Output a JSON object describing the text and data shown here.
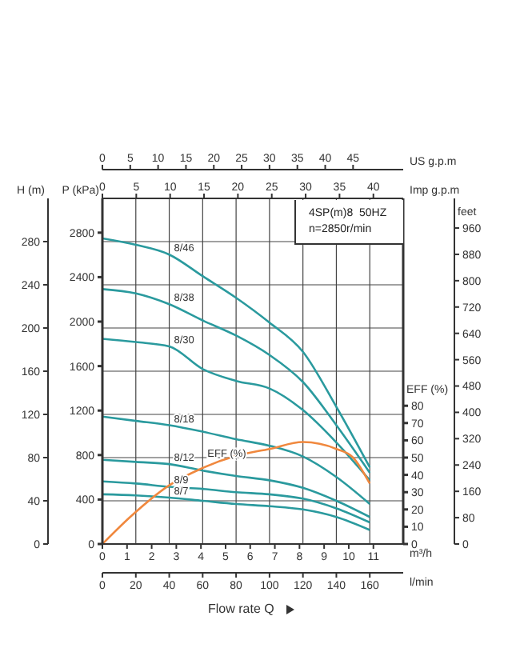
{
  "chart_data": {
    "type": "line",
    "xlabel": "l/min",
    "xlim": [
      0,
      180
    ],
    "xticks": [
      0,
      20,
      40,
      60,
      80,
      100,
      120,
      140,
      160
    ],
    "x2label": "US g.p.m",
    "x2lim": [
      0,
      54
    ],
    "x2ticks": [
      0,
      5,
      10,
      15,
      20,
      25,
      30,
      35,
      40,
      45
    ],
    "ylabel": "H (m)",
    "ylim": [
      0,
      320
    ],
    "yticks": [
      0,
      40,
      80,
      120,
      160,
      200,
      240,
      280
    ],
    "y2label": "EFF (%)",
    "y2lim": [
      0,
      200
    ],
    "y2ticks": [
      0,
      10,
      20,
      30,
      40,
      50,
      60,
      70,
      80
    ],
    "y3label": "feet",
    "y3lim": [
      0,
      1050
    ],
    "y3ticks": [
      0,
      80,
      160,
      240,
      320,
      400,
      480,
      560,
      640,
      720,
      800,
      880,
      960
    ],
    "grid": true,
    "marker": "none",
    "annotations": [
      "Flow rate Q",
      "4SP(m)8  50HZ",
      "n=2850r/min",
      "Imp g.p.m",
      "0",
      "5",
      "10",
      "15",
      "20",
      "25",
      "30",
      "35",
      "40",
      "m³/h",
      "0",
      "1",
      "2",
      "3",
      "4",
      "5",
      "6",
      "7",
      "8",
      "9",
      "10",
      "11",
      "P (kPa)",
      "0",
      "400",
      "800",
      "1200",
      "1600",
      "2000",
      "2400",
      "2800"
    ],
    "series": [
      {
        "name": "8/46",
        "color": "#2a9a9e",
        "x": [
          0,
          20,
          40,
          60,
          80,
          100,
          120,
          140,
          160
        ],
        "values": [
          283,
          277,
          268,
          248,
          228,
          205,
          178,
          127,
          71
        ]
      },
      {
        "name": "8/38",
        "color": "#2a9a9e",
        "x": [
          0,
          20,
          40,
          60,
          80,
          100,
          120,
          140,
          160
        ],
        "values": [
          236,
          232,
          222,
          207,
          193,
          175,
          150,
          110,
          66
        ]
      },
      {
        "name": "8/30",
        "color": "#2a9a9e",
        "x": [
          0,
          20,
          40,
          60,
          80,
          100,
          120,
          140,
          160
        ],
        "values": [
          190,
          187,
          183,
          162,
          151,
          144,
          124,
          94,
          59
        ]
      },
      {
        "name": "8/18",
        "color": "#2a9a9e",
        "x": [
          0,
          20,
          40,
          60,
          80,
          100,
          120,
          140,
          160
        ],
        "values": [
          118,
          114,
          110,
          104,
          97,
          91,
          81,
          62,
          37
        ]
      },
      {
        "name": "8/12",
        "color": "#2a9a9e",
        "x": [
          0,
          20,
          40,
          60,
          80,
          100,
          120,
          140,
          160
        ],
        "values": [
          78,
          76,
          74,
          68,
          63,
          59,
          52,
          40,
          25
        ]
      },
      {
        "name": "8/9",
        "color": "#2a9a9e",
        "x": [
          0,
          20,
          40,
          60,
          80,
          100,
          120,
          140,
          160
        ],
        "values": [
          58,
          56,
          53,
          51,
          48,
          46,
          42,
          33,
          20
        ]
      },
      {
        "name": "8/7",
        "color": "#2a9a9e",
        "x": [
          0,
          20,
          40,
          60,
          80,
          100,
          120,
          140,
          160
        ],
        "values": [
          46,
          45,
          43,
          40,
          37,
          35,
          32,
          25,
          13
        ]
      },
      {
        "name": "EFF (%)",
        "color": "#f0883e",
        "axis": "y2",
        "x": [
          0,
          17,
          40,
          60,
          80,
          100,
          120,
          140,
          150,
          160
        ],
        "values": [
          0,
          16,
          34,
          44,
          51,
          55,
          59,
          55,
          50,
          35
        ]
      }
    ]
  }
}
